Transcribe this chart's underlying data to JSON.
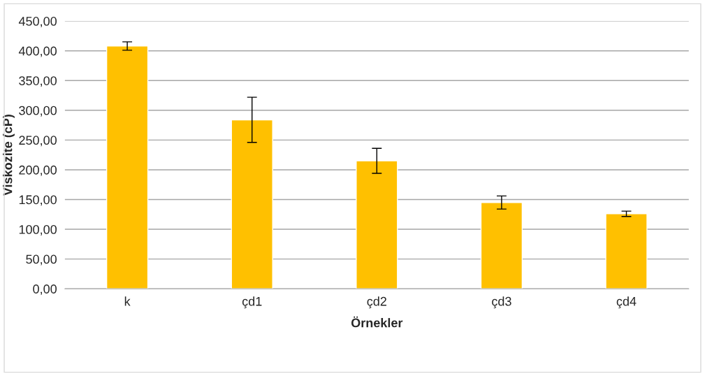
{
  "chart_data": {
    "type": "bar",
    "xlabel": "Örnekler",
    "ylabel": "Viskozite (cP)",
    "categories": [
      "k",
      "çd1",
      "çd2",
      "çd3",
      "çd4"
    ],
    "values": [
      408,
      284,
      215,
      145,
      126
    ],
    "errors": [
      7,
      38,
      21,
      11,
      4.5
    ],
    "color": "#ffc000",
    "ylim": [
      0,
      450
    ],
    "yticks": [
      {
        "value": 0,
        "label": "0,00"
      },
      {
        "value": 50,
        "label": "50,00"
      },
      {
        "value": 100,
        "label": "100,00"
      },
      {
        "value": 150,
        "label": "150,00"
      },
      {
        "value": 200,
        "label": "200,00"
      },
      {
        "value": 250,
        "label": "250,00"
      },
      {
        "value": 300,
        "label": "300,00"
      },
      {
        "value": 350,
        "label": "350,00"
      },
      {
        "value": 400,
        "label": "400,00"
      },
      {
        "value": 450,
        "label": "450,00"
      }
    ],
    "grid": "y",
    "legend": false
  }
}
